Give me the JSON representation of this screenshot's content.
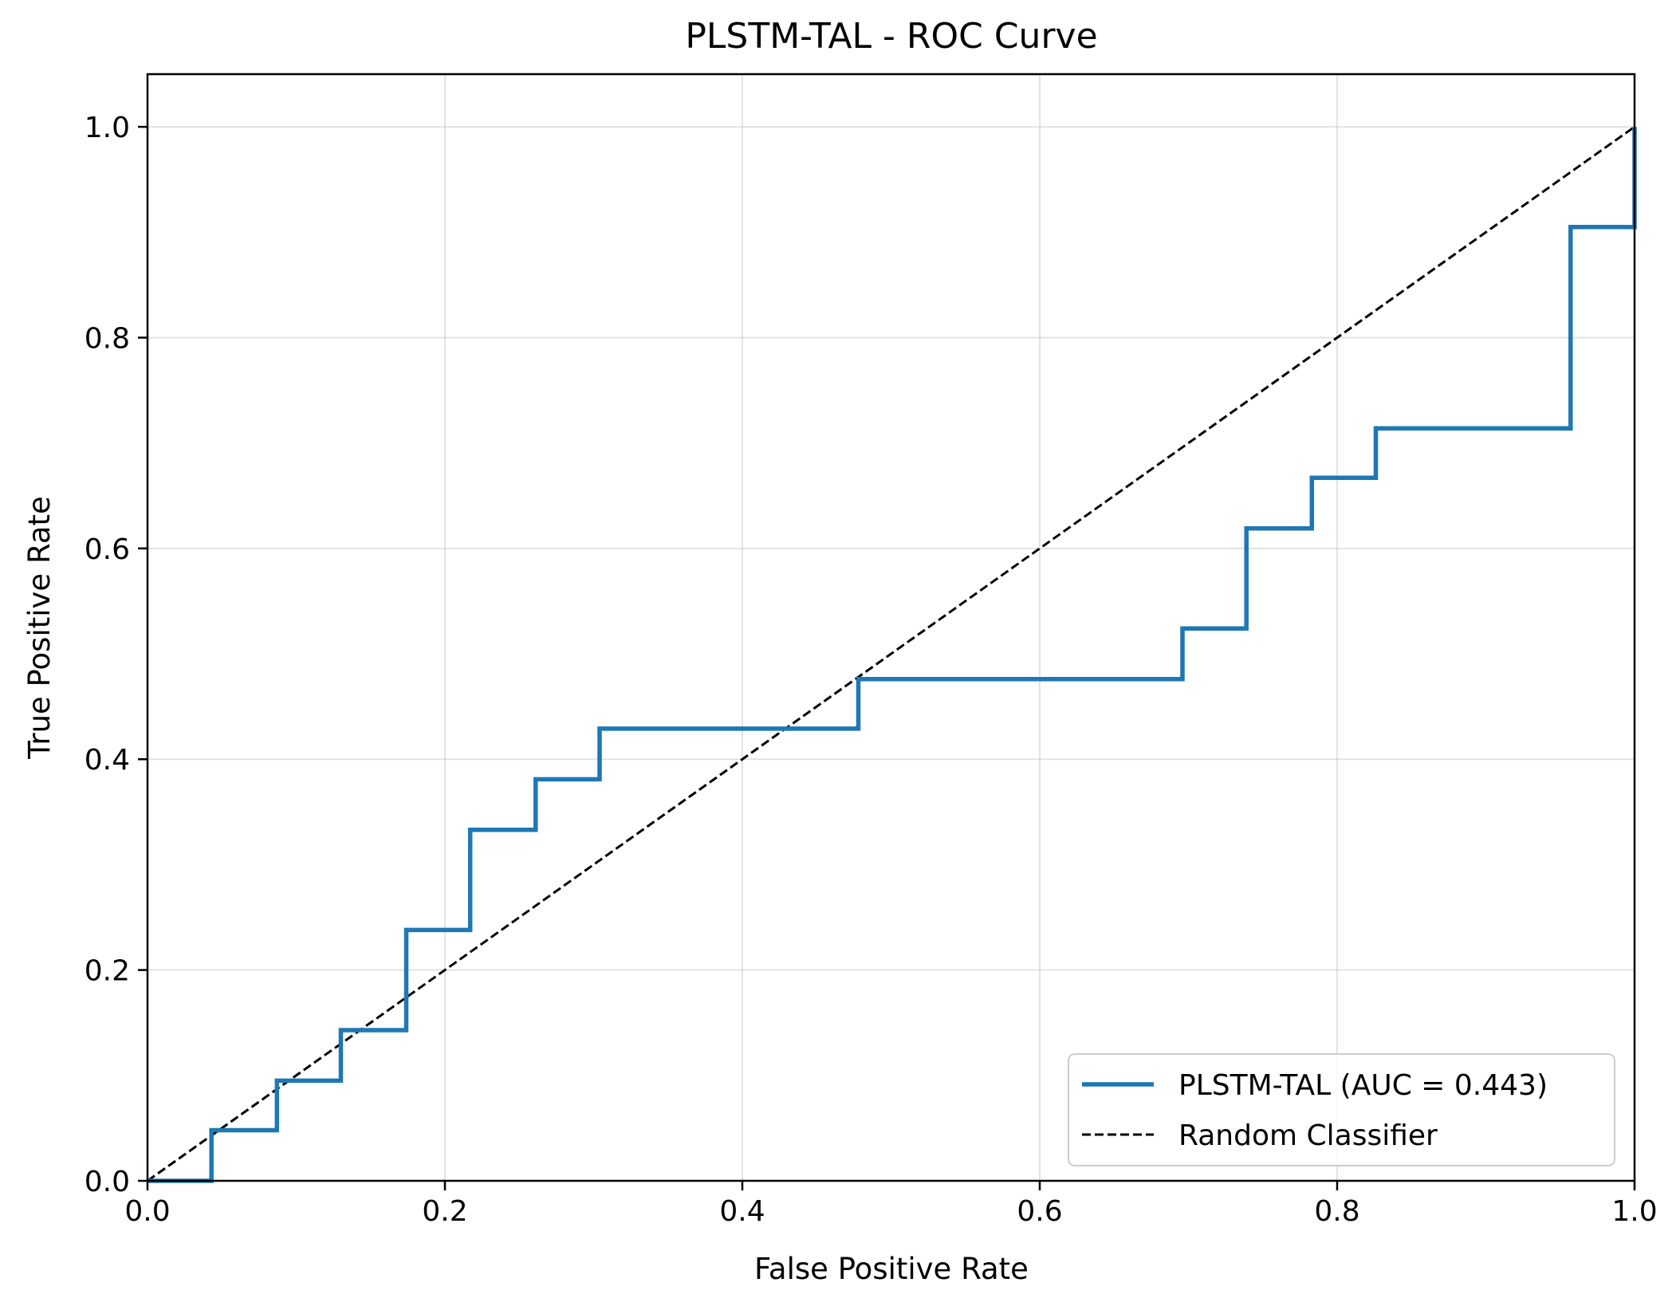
{
  "chart_data": {
    "type": "line",
    "title": "PLSTM-TAL - ROC Curve",
    "xlabel": "False Positive Rate",
    "ylabel": "True Positive Rate",
    "xlim": [
      0.0,
      1.0
    ],
    "ylim": [
      0.0,
      1.05
    ],
    "xticks": [
      0.0,
      0.2,
      0.4,
      0.6,
      0.8,
      1.0
    ],
    "yticks": [
      0.0,
      0.2,
      0.4,
      0.6,
      0.8,
      1.0
    ],
    "xtick_labels": [
      "0.0",
      "0.2",
      "0.4",
      "0.6",
      "0.8",
      "1.0"
    ],
    "ytick_labels": [
      "0.0",
      "0.2",
      "0.4",
      "0.6",
      "0.8",
      "1.0"
    ],
    "grid": true,
    "legend_position": "lower-right",
    "series": [
      {
        "name": "PLSTM-TAL (AUC = 0.443)",
        "style": "solid",
        "color": "#1f77b4",
        "x": [
          0.0,
          0.043,
          0.043,
          0.087,
          0.087,
          0.13,
          0.13,
          0.174,
          0.174,
          0.217,
          0.217,
          0.261,
          0.261,
          0.304,
          0.304,
          0.478,
          0.478,
          0.696,
          0.696,
          0.739,
          0.739,
          0.783,
          0.783,
          0.826,
          0.826,
          0.957,
          0.957,
          1.0,
          1.0
        ],
        "y": [
          0.0,
          0.0,
          0.048,
          0.048,
          0.095,
          0.095,
          0.143,
          0.143,
          0.238,
          0.238,
          0.333,
          0.333,
          0.381,
          0.381,
          0.429,
          0.429,
          0.476,
          0.476,
          0.524,
          0.524,
          0.619,
          0.619,
          0.667,
          0.667,
          0.714,
          0.714,
          0.905,
          0.905,
          1.0
        ]
      },
      {
        "name": "Random Classifier",
        "style": "dashed",
        "color": "#000000",
        "x": [
          0.0,
          1.0
        ],
        "y": [
          0.0,
          1.0
        ]
      }
    ]
  }
}
